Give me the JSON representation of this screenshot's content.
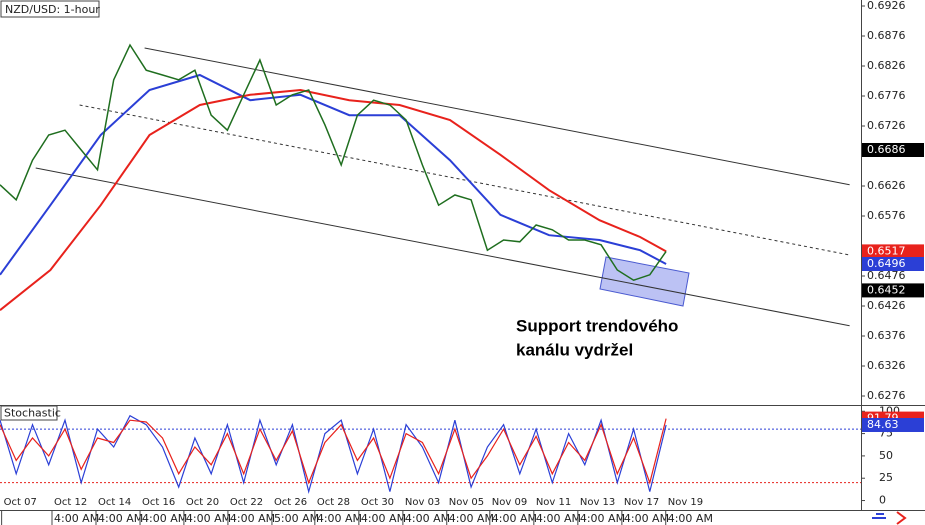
{
  "chart_data": {
    "type": "line",
    "title": "NZD/USD: 1-hour",
    "xlim": [
      0,
      53
    ],
    "ylim": [
      0.6261,
      0.6936
    ],
    "yticks": [
      0.6926,
      0.6876,
      0.6826,
      0.6776,
      0.6726,
      0.6626,
      0.6576,
      0.6476,
      0.6426,
      0.6376,
      0.6326,
      0.6276
    ],
    "x": [
      0,
      1,
      2,
      3,
      4,
      5,
      6,
      7,
      8,
      9,
      10,
      11,
      12,
      13,
      14,
      15,
      16,
      17,
      18,
      19,
      20,
      21,
      22,
      23,
      24,
      25,
      26,
      27,
      28,
      29,
      30,
      31,
      32,
      33,
      34,
      35,
      36,
      37,
      38,
      39,
      40,
      41
    ],
    "series": [
      {
        "color": "#1f6e1f",
        "values": [
          0.6628,
          0.6603,
          0.6669,
          0.6711,
          0.6719,
          0.6686,
          0.6653,
          0.6803,
          0.6861,
          0.6819,
          0.6811,
          0.6803,
          0.6819,
          0.6744,
          0.6719,
          0.6778,
          0.6836,
          0.6761,
          0.6778,
          0.6786,
          0.6728,
          0.6661,
          0.6744,
          0.6769,
          0.6761,
          0.6736,
          0.6661,
          0.6594,
          0.6611,
          0.6603,
          0.6519,
          0.6536,
          0.6533,
          0.6561,
          0.6553,
          0.6536,
          0.6536,
          0.6528,
          0.6486,
          0.6469,
          0.6478,
          0.6517
        ]
      }
    ],
    "overlays": [
      {
        "color": "#2b3fd6",
        "x": [
          0,
          3.1,
          6.2,
          9.2,
          12.3,
          15.4,
          18.5,
          21.5,
          24.6,
          27.7,
          30.8,
          33.8,
          36.9,
          39.4,
          41
        ],
        "values": [
          0.6478,
          0.6594,
          0.6711,
          0.6786,
          0.6811,
          0.6769,
          0.6778,
          0.6744,
          0.6744,
          0.6669,
          0.6578,
          0.6544,
          0.6536,
          0.6519,
          0.6496
        ]
      },
      {
        "color": "#e8221c",
        "x": [
          0,
          3.1,
          6.2,
          9.2,
          12.3,
          15.4,
          18.5,
          21.5,
          24.6,
          27.7,
          30.8,
          33.8,
          36.9,
          39.4,
          41
        ],
        "values": [
          0.6419,
          0.6486,
          0.6594,
          0.6711,
          0.6761,
          0.6778,
          0.6786,
          0.6769,
          0.6761,
          0.6736,
          0.6678,
          0.6619,
          0.6569,
          0.6541,
          0.6517
        ]
      }
    ],
    "channel": [
      {
        "x": [
          8.9,
          52.3
        ],
        "values": [
          0.6856,
          0.6628
        ],
        "dashed": false
      },
      {
        "x": [
          4.9,
          52.3
        ],
        "values": [
          0.6761,
          0.6511
        ],
        "dashed": true
      },
      {
        "x": [
          2.2,
          52.3
        ],
        "values": [
          0.6656,
          0.6393
        ],
        "dashed": false
      }
    ],
    "price_tags": [
      {
        "value": 0.6686,
        "color": "#000000"
      },
      {
        "value": 0.6517,
        "color": "#e8221c"
      },
      {
        "value": 0.6496,
        "color": "#2b3fd6"
      },
      {
        "value": 0.6452,
        "color": "#000000"
      }
    ],
    "annotation": [
      "Support trendového",
      "kanálu vydržel"
    ],
    "xticks": [
      {
        "value": 0.1,
        "label": "Oct 07"
      },
      {
        "value": 3.2,
        "label": "Oct 12"
      },
      {
        "value": 5.91,
        "label": "Oct 14"
      },
      {
        "value": 8.62,
        "label": "Oct 16"
      },
      {
        "value": 11.32,
        "label": "Oct 20"
      },
      {
        "value": 14.03,
        "label": "Oct 22"
      },
      {
        "value": 16.74,
        "label": "Oct 26"
      },
      {
        "value": 19.38,
        "label": "Oct 28"
      },
      {
        "value": 22.09,
        "label": "Oct 30"
      },
      {
        "value": 24.8,
        "label": "Nov 03"
      },
      {
        "value": 27.5,
        "label": "Nov 05"
      },
      {
        "value": 30.15,
        "label": "Nov 09"
      },
      {
        "value": 32.86,
        "label": "Nov 11"
      },
      {
        "value": 35.57,
        "label": "Nov 13"
      },
      {
        "value": 38.28,
        "label": "Nov 17"
      },
      {
        "value": 40.98,
        "label": "Nov 19"
      }
    ],
    "time_labels": [
      "4:00 AM",
      "4:00 AM",
      "4:00 AM",
      "4:00 AM",
      "4:00 AM",
      "5:00 AM",
      "4:00 AM",
      "4:00 AM",
      "4:00 AM",
      "4:00 AM",
      "4:00 AM",
      "4:00 AM",
      "4:00 AM",
      "4:00 AM",
      "4:00 AM"
    ],
    "stochastic": {
      "title": "Stochastic",
      "ylim": [
        -10.6,
        105.9
      ],
      "yticks": [
        0,
        25,
        50,
        75,
        100
      ],
      "levels": [
        {
          "value": 80,
          "color": "#2b3fd6"
        },
        {
          "value": 20,
          "color": "#e8221c"
        }
      ],
      "series": [
        {
          "color": "#2b3fd6",
          "values": [
            90,
            30,
            85,
            40,
            90,
            20,
            80,
            60,
            95,
            85,
            60,
            15,
            70,
            30,
            85,
            20,
            90,
            40,
            85,
            10,
            75,
            90,
            30,
            80,
            10,
            85,
            60,
            20,
            90,
            15,
            60,
            85,
            30,
            80,
            20,
            75,
            40,
            90,
            20,
            80,
            10,
            84.63
          ]
        },
        {
          "color": "#e8221c",
          "values": [
            85,
            45,
            70,
            50,
            80,
            35,
            70,
            65,
            90,
            88,
            70,
            30,
            60,
            40,
            75,
            30,
            80,
            45,
            78,
            20,
            65,
            85,
            45,
            70,
            25,
            75,
            65,
            30,
            80,
            25,
            50,
            80,
            40,
            72,
            30,
            65,
            45,
            85,
            30,
            70,
            20,
            91.79
          ]
        }
      ],
      "tags": [
        {
          "value": 91.79,
          "color": "#e8221c"
        },
        {
          "value": 84.63,
          "color": "#2b3fd6"
        }
      ]
    }
  }
}
